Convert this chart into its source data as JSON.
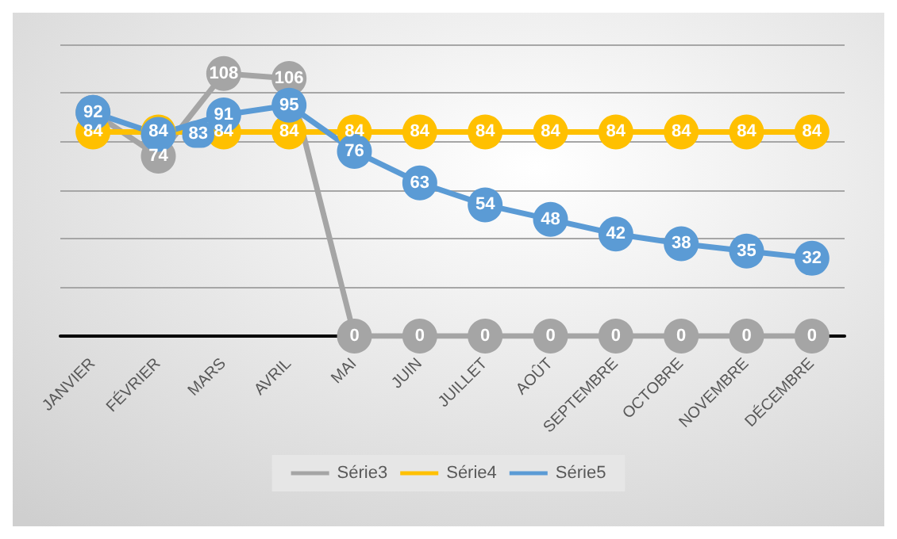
{
  "chart_data": {
    "type": "line",
    "categories": [
      "JANVIER",
      "FÉVRIER",
      "MARS",
      "AVRIL",
      "MAI",
      "JUIN",
      "JUILLET",
      "AOÛT",
      "SEPTEMBRE",
      "OCTOBRE",
      "NOVEMBRE",
      "DÉCEMBRE"
    ],
    "series": [
      {
        "name": "Série3",
        "color": "#a5a5a5",
        "values": [
          92,
          74,
          108,
          106,
          0,
          0,
          0,
          0,
          0,
          0,
          0,
          0
        ],
        "value_labels": [
          null,
          "74",
          "108",
          "106",
          "0",
          "0",
          "0",
          "0",
          "0",
          "0",
          "0",
          "0"
        ]
      },
      {
        "name": "Série4",
        "color": "#ffc000",
        "values": [
          84,
          84,
          84,
          84,
          84,
          84,
          84,
          84,
          84,
          84,
          84,
          84
        ],
        "value_labels": [
          "84",
          "84",
          "84",
          "84",
          "84",
          "84",
          "84",
          "84",
          "84",
          "84",
          "84",
          "84"
        ]
      },
      {
        "name": "Série5",
        "color": "#5b9bd5",
        "values": [
          92,
          83,
          91,
          95,
          76,
          63,
          54,
          48,
          42,
          38,
          35,
          32
        ],
        "value_labels": [
          "92",
          "83",
          "91",
          "95",
          "76",
          "63",
          "54",
          "48",
          "42",
          "38",
          "35",
          "32"
        ]
      }
    ],
    "ylim": [
      0,
      120
    ],
    "yticks": [
      {
        "value": 0,
        "label": null
      },
      {
        "value": 20,
        "label": null
      },
      {
        "value": 40,
        "label": null
      },
      {
        "value": 60,
        "label": null
      },
      {
        "value": 80,
        "label": null
      },
      {
        "value": 100,
        "label": null
      },
      {
        "value": 120,
        "label": null
      }
    ],
    "grid": "y",
    "tick_labels": "x",
    "legend": "bottom",
    "marker": "circle",
    "line_style": "solid"
  }
}
